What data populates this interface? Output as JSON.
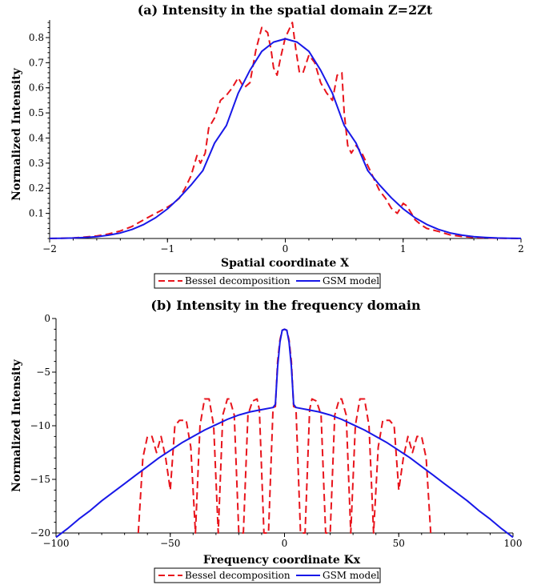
{
  "chart_data": [
    {
      "type": "line",
      "title": "(a) Intensity in the spatial domain Z=2Zt",
      "xlabel": "Spatial coordinate X",
      "ylabel": "Normalized Intensity",
      "xlim": [
        -2,
        2
      ],
      "ylim": [
        0,
        0.87
      ],
      "x_ticks": [
        -2,
        -1,
        0,
        1,
        2
      ],
      "x_tick_labels": [
        "−2",
        "−1",
        "0",
        "1",
        "2"
      ],
      "y_ticks": [
        0.1,
        0.2,
        0.3,
        0.4,
        0.5,
        0.6,
        0.7,
        0.8
      ],
      "y_tick_labels": [
        "0.1",
        "0.2",
        "0.3",
        "0.4",
        "0.5",
        "0.6",
        "0.7",
        "0.8"
      ],
      "legend_position": "below",
      "series": [
        {
          "name": "Bessel decomposition",
          "color": "#e8141c",
          "dash": "dashed",
          "x": [
            -2.0,
            -1.8,
            -1.6,
            -1.5,
            -1.4,
            -1.3,
            -1.2,
            -1.1,
            -1.0,
            -0.95,
            -0.9,
            -0.85,
            -0.8,
            -0.75,
            -0.72,
            -0.68,
            -0.65,
            -0.6,
            -0.55,
            -0.5,
            -0.45,
            -0.4,
            -0.35,
            -0.3,
            -0.25,
            -0.2,
            -0.15,
            -0.12,
            -0.1,
            -0.07,
            -0.04,
            0.0,
            0.03,
            0.06,
            0.09,
            0.12,
            0.15,
            0.2,
            0.25,
            0.3,
            0.35,
            0.4,
            0.44,
            0.48,
            0.5,
            0.53,
            0.56,
            0.6,
            0.65,
            0.7,
            0.75,
            0.8,
            0.85,
            0.9,
            0.95,
            1.0,
            1.03,
            1.07,
            1.1,
            1.15,
            1.2,
            1.3,
            1.4,
            1.5,
            1.6,
            1.8,
            2.0
          ],
          "y": [
            0.0,
            0.002,
            0.01,
            0.018,
            0.03,
            0.048,
            0.075,
            0.1,
            0.125,
            0.14,
            0.16,
            0.2,
            0.25,
            0.33,
            0.3,
            0.34,
            0.44,
            0.48,
            0.55,
            0.57,
            0.6,
            0.64,
            0.6,
            0.62,
            0.75,
            0.84,
            0.82,
            0.75,
            0.68,
            0.65,
            0.72,
            0.8,
            0.83,
            0.86,
            0.75,
            0.66,
            0.66,
            0.73,
            0.7,
            0.62,
            0.58,
            0.55,
            0.65,
            0.66,
            0.5,
            0.37,
            0.34,
            0.37,
            0.34,
            0.29,
            0.24,
            0.19,
            0.16,
            0.12,
            0.1,
            0.14,
            0.13,
            0.1,
            0.075,
            0.055,
            0.04,
            0.028,
            0.014,
            0.008,
            0.004,
            0.001,
            0.0
          ]
        },
        {
          "name": "GSM model",
          "color": "#1818e8",
          "dash": "solid",
          "x": [
            -2.0,
            -1.9,
            -1.8,
            -1.7,
            -1.6,
            -1.5,
            -1.4,
            -1.3,
            -1.2,
            -1.1,
            -1.0,
            -0.9,
            -0.8,
            -0.7,
            -0.6,
            -0.5,
            -0.4,
            -0.3,
            -0.2,
            -0.1,
            0.0,
            0.1,
            0.2,
            0.3,
            0.4,
            0.5,
            0.6,
            0.7,
            0.8,
            0.9,
            1.0,
            1.1,
            1.2,
            1.3,
            1.4,
            1.5,
            1.6,
            1.7,
            1.8,
            1.9,
            2.0
          ],
          "y": [
            0.0004,
            0.0009,
            0.002,
            0.004,
            0.007,
            0.013,
            0.022,
            0.036,
            0.056,
            0.083,
            0.118,
            0.162,
            0.213,
            0.27,
            0.38,
            0.45,
            0.578,
            0.67,
            0.745,
            0.782,
            0.795,
            0.782,
            0.745,
            0.67,
            0.578,
            0.45,
            0.38,
            0.27,
            0.213,
            0.162,
            0.118,
            0.083,
            0.056,
            0.036,
            0.022,
            0.013,
            0.007,
            0.004,
            0.002,
            0.0009,
            0.0004
          ]
        }
      ]
    },
    {
      "type": "line",
      "title": "(b) Intensity in the frequency domain",
      "xlabel": "Frequency coordinate Kx",
      "ylabel": "Normalized Intensity",
      "xlim": [
        -100,
        100
      ],
      "ylim": [
        -20,
        0
      ],
      "x_ticks": [
        -100,
        -50,
        0,
        50,
        100
      ],
      "x_tick_labels": [
        "−100",
        "−50",
        "0",
        "50",
        "100"
      ],
      "y_ticks": [
        0,
        -5,
        -10,
        -15,
        -20
      ],
      "y_tick_labels": [
        "0",
        "−5",
        "−10",
        "−15",
        "−20"
      ],
      "legend_position": "below",
      "series": [
        {
          "name": "Bessel decomposition",
          "color": "#e8141c",
          "dash": "dashed",
          "x": [
            -64,
            -62,
            -60,
            -58,
            -56,
            -54,
            -52,
            -50,
            -48,
            -46,
            -43,
            -41,
            -39,
            -37,
            -35,
            -33,
            -31,
            -29,
            -27,
            -25,
            -24,
            -22,
            -20,
            -18,
            -16,
            -14,
            -12,
            -11,
            -9,
            -7,
            -5,
            -4,
            -3,
            -2,
            -1,
            0,
            1,
            2,
            3,
            4,
            5,
            7,
            9,
            11,
            12,
            14,
            16,
            18,
            20,
            22,
            24,
            25,
            27,
            29,
            31,
            33,
            35,
            37,
            39,
            41,
            43,
            46,
            48,
            50,
            52,
            54,
            56,
            58,
            60,
            62,
            64
          ],
          "y": [
            -20,
            -13,
            -11,
            -11,
            -12.5,
            -11,
            -13,
            -16,
            -10,
            -9.5,
            -9.5,
            -12,
            -20,
            -10,
            -7.5,
            -7.5,
            -10,
            -20,
            -9,
            -7.5,
            -7.5,
            -9,
            -20,
            -20,
            -9,
            -7.7,
            -7.5,
            -8.5,
            -20,
            -20,
            -8.3,
            -8.2,
            -4,
            -2,
            -1.1,
            -1,
            -1.1,
            -2,
            -4,
            -8.2,
            -8.3,
            -20,
            -20,
            -8.5,
            -7.5,
            -7.7,
            -9,
            -20,
            -20,
            -9,
            -7.5,
            -7.5,
            -9,
            -20,
            -10,
            -7.5,
            -7.5,
            -10,
            -20,
            -12,
            -9.5,
            -9.5,
            -10,
            -16,
            -13,
            -11,
            -12.5,
            -11,
            -11,
            -13,
            -20
          ]
        },
        {
          "name": "GSM model",
          "color": "#1818e8",
          "dash": "solid",
          "x": [
            -100,
            -95,
            -90,
            -85,
            -80,
            -75,
            -70,
            -65,
            -60,
            -55,
            -50,
            -45,
            -40,
            -35,
            -30,
            -25,
            -20,
            -15,
            -10,
            -5,
            -4,
            -3,
            -2,
            -1,
            0,
            1,
            2,
            3,
            4,
            5,
            10,
            15,
            20,
            25,
            30,
            35,
            40,
            45,
            50,
            55,
            60,
            65,
            70,
            75,
            80,
            85,
            90,
            95,
            100
          ],
          "y": [
            -20.4,
            -19.6,
            -18.7,
            -17.9,
            -17.0,
            -16.2,
            -15.4,
            -14.6,
            -13.8,
            -13.0,
            -12.3,
            -11.6,
            -11.0,
            -10.4,
            -9.9,
            -9.4,
            -9.0,
            -8.7,
            -8.5,
            -8.3,
            -8.0,
            -4.5,
            -2.2,
            -1.1,
            -1.0,
            -1.1,
            -2.2,
            -4.5,
            -8.0,
            -8.3,
            -8.5,
            -8.7,
            -9.0,
            -9.4,
            -9.9,
            -10.4,
            -11.0,
            -11.6,
            -12.3,
            -13.0,
            -13.8,
            -14.6,
            -15.4,
            -16.2,
            -17.0,
            -17.9,
            -18.7,
            -19.6,
            -20.4
          ]
        }
      ]
    }
  ]
}
